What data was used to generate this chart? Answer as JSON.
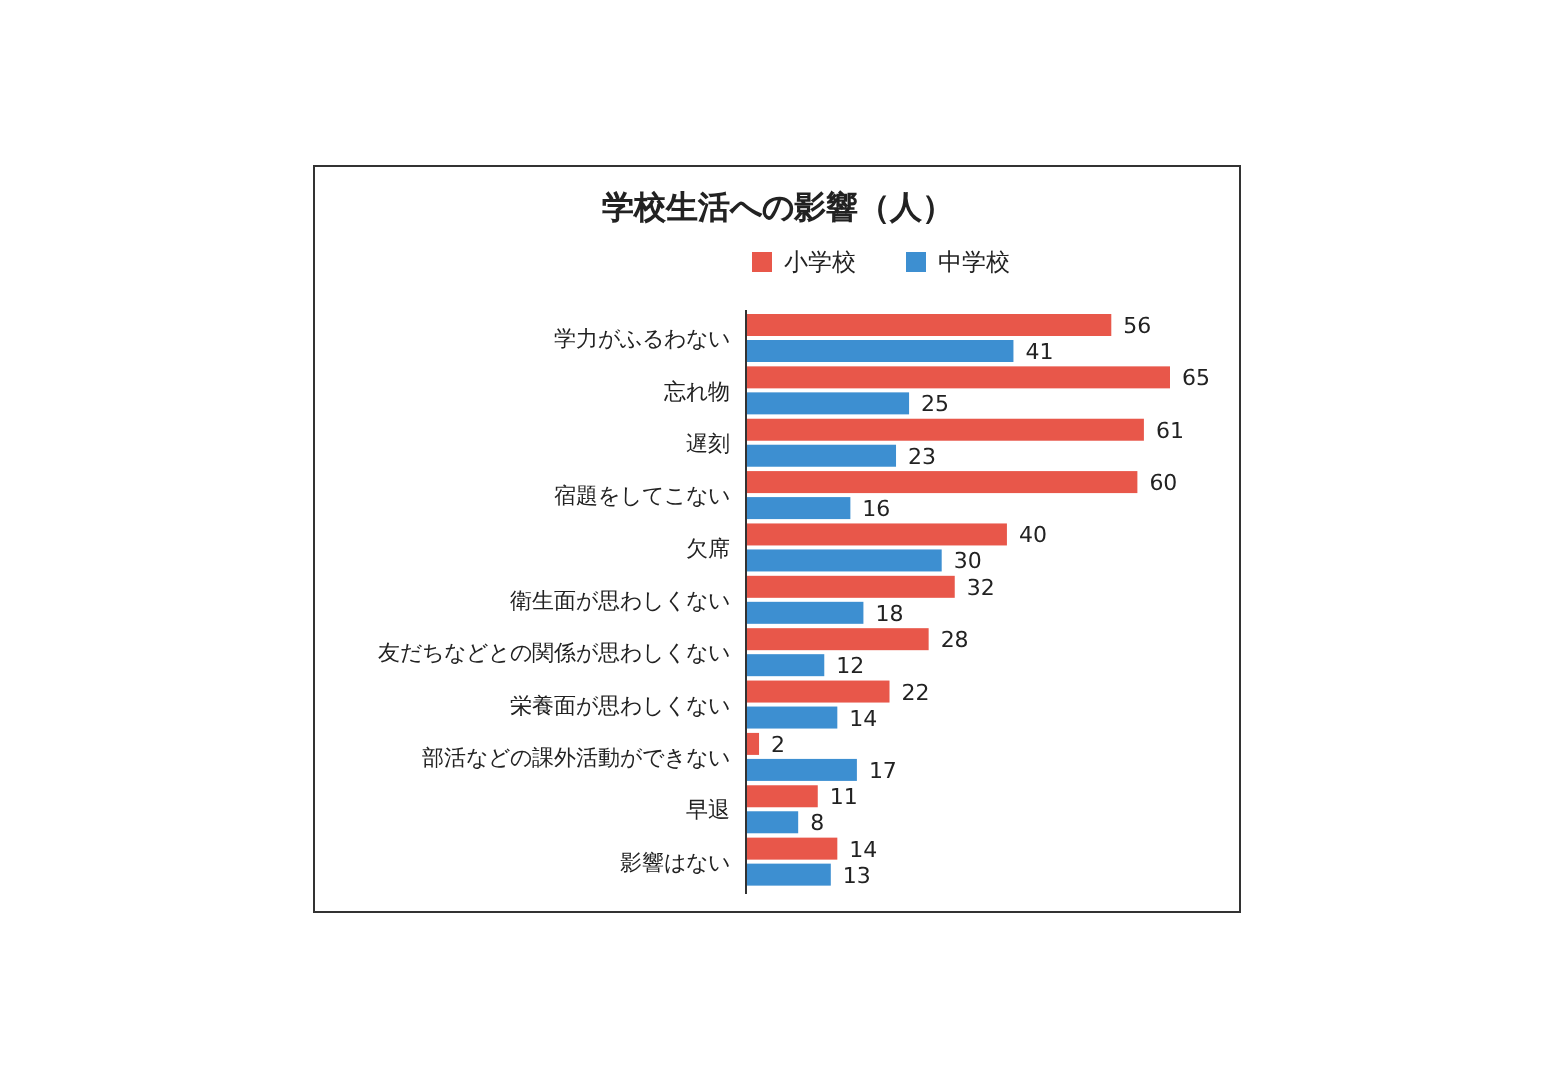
{
  "chart_data": {
    "type": "bar",
    "orientation": "horizontal",
    "title": "学校生活への影響（人）",
    "categories": [
      "学力がふるわない",
      "忘れ物",
      "遅刻",
      "宿題をしてこない",
      "欠席",
      "衛生面が思わしくない",
      "友だちなどとの関係が思わしくない",
      "栄養面が思わしくない",
      "部活などの課外活動ができない",
      "早退",
      "影響はない"
    ],
    "series": [
      {
        "name": "小学校",
        "color": "#e8574a",
        "values": [
          56,
          65,
          61,
          60,
          40,
          32,
          28,
          22,
          2,
          11,
          14
        ]
      },
      {
        "name": "中学校",
        "color": "#3d8fd1",
        "values": [
          41,
          25,
          23,
          16,
          30,
          18,
          12,
          14,
          17,
          8,
          13
        ]
      }
    ],
    "data_labels": true,
    "legend": "top",
    "tick_labels": "y"
  }
}
